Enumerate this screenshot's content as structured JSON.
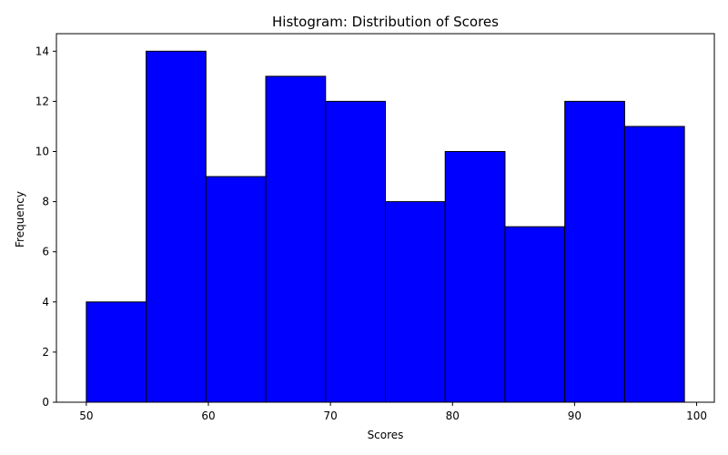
{
  "chart_data": {
    "type": "bar",
    "title": "Histogram: Distribution of Scores",
    "xlabel": "Scores",
    "ylabel": "Frequency",
    "bin_edges": [
      50,
      54.9,
      59.8,
      64.7,
      69.6,
      74.5,
      79.4,
      84.3,
      89.2,
      94.1,
      99
    ],
    "values": [
      4,
      14,
      9,
      13,
      12,
      8,
      10,
      7,
      12,
      11
    ],
    "xlim": [
      47.55,
      101.45
    ],
    "ylim": [
      0,
      14.7
    ],
    "xticks": [
      50,
      60,
      70,
      80,
      90,
      100
    ],
    "yticks": [
      0,
      2,
      4,
      6,
      8,
      10,
      12,
      14
    ],
    "bar_color": "#0000ff",
    "edge_color": "#000000",
    "grid": false,
    "legend": "none"
  }
}
